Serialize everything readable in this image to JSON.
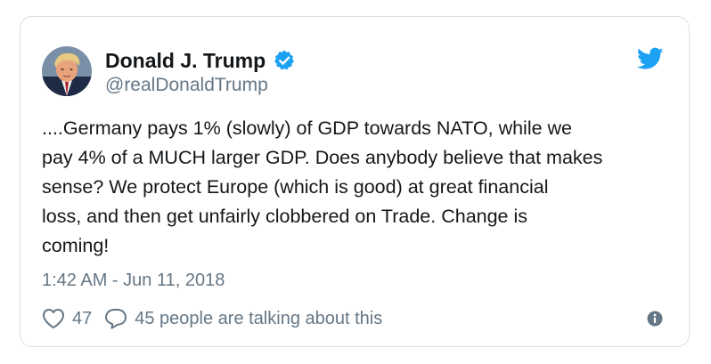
{
  "author": {
    "display_name": "Donald J. Trump",
    "handle": "@realDonaldTrump",
    "verified": true,
    "avatar_icon": "profile-photo"
  },
  "tweet": {
    "text": "....Germany pays 1% (slowly) of GDP towards NATO, while we\npay 4% of a MUCH larger GDP. Does anybody believe that makes\nsense? We protect Europe (which is good) at great financial\nloss, and then get unfairly clobbered on Trade. Change is\ncoming!",
    "timestamp": "1:42 AM - Jun 11, 2018"
  },
  "actions": {
    "like_count": "47",
    "talking_label": "45 people are talking about this"
  },
  "icons": {
    "brand": "twitter-bird-icon",
    "verified": "verified-badge-icon",
    "like": "heart-icon",
    "reply": "speech-bubble-icon",
    "info": "info-icon"
  },
  "colors": {
    "brand_blue": "#1da1f2",
    "text": "#14171a",
    "muted": "#657786",
    "border": "#d9dfe4"
  }
}
